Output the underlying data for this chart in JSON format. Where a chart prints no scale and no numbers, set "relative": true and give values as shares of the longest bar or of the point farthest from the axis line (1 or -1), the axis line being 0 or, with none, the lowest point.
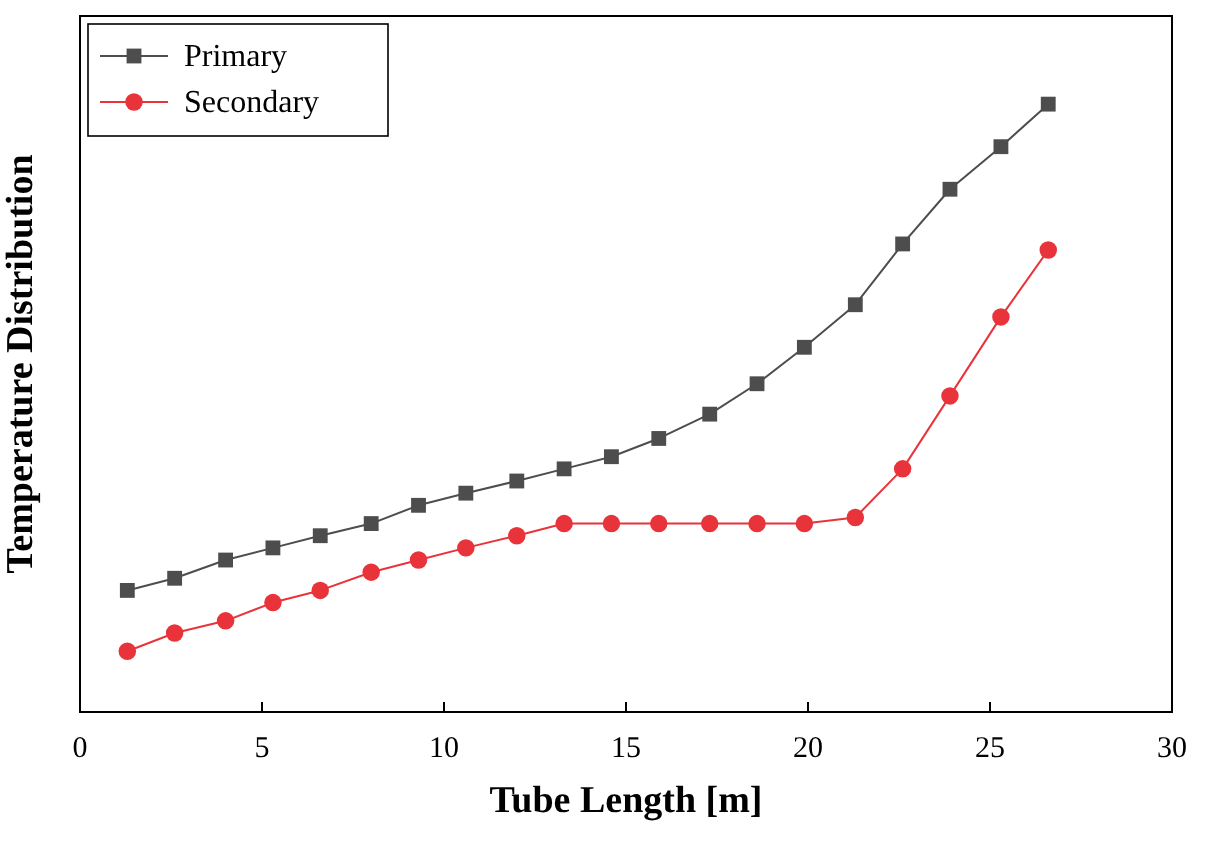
{
  "chart_data": {
    "type": "line",
    "xlabel": "Tube Length [m]",
    "ylabel": "Temperature Distribution",
    "relative": true,
    "xlim": [
      0,
      30
    ],
    "xticks": [
      0,
      5,
      10,
      15,
      20,
      25,
      30
    ],
    "legend": "top left",
    "x": [
      1.3,
      2.6,
      4.0,
      5.3,
      6.6,
      8.0,
      9.3,
      10.6,
      12.0,
      13.3,
      14.6,
      15.9,
      17.3,
      18.6,
      19.9,
      21.3,
      22.6,
      23.9,
      25.3,
      26.6
    ],
    "series": [
      {
        "name": "Primary",
        "color": "#4d4d4d",
        "marker": "square",
        "values": [
          0.2,
          0.22,
          0.25,
          0.27,
          0.29,
          0.31,
          0.34,
          0.36,
          0.38,
          0.4,
          0.42,
          0.45,
          0.49,
          0.54,
          0.6,
          0.67,
          0.77,
          0.86,
          0.93,
          1
        ]
      },
      {
        "name": "Secondary",
        "color": "#e8333a",
        "marker": "circle",
        "values": [
          0.1,
          0.13,
          0.15,
          0.18,
          0.2,
          0.23,
          0.25,
          0.27,
          0.29,
          0.31,
          0.31,
          0.31,
          0.31,
          0.31,
          0.31,
          0.32,
          0.4,
          0.52,
          0.65,
          0.76
        ]
      }
    ]
  }
}
